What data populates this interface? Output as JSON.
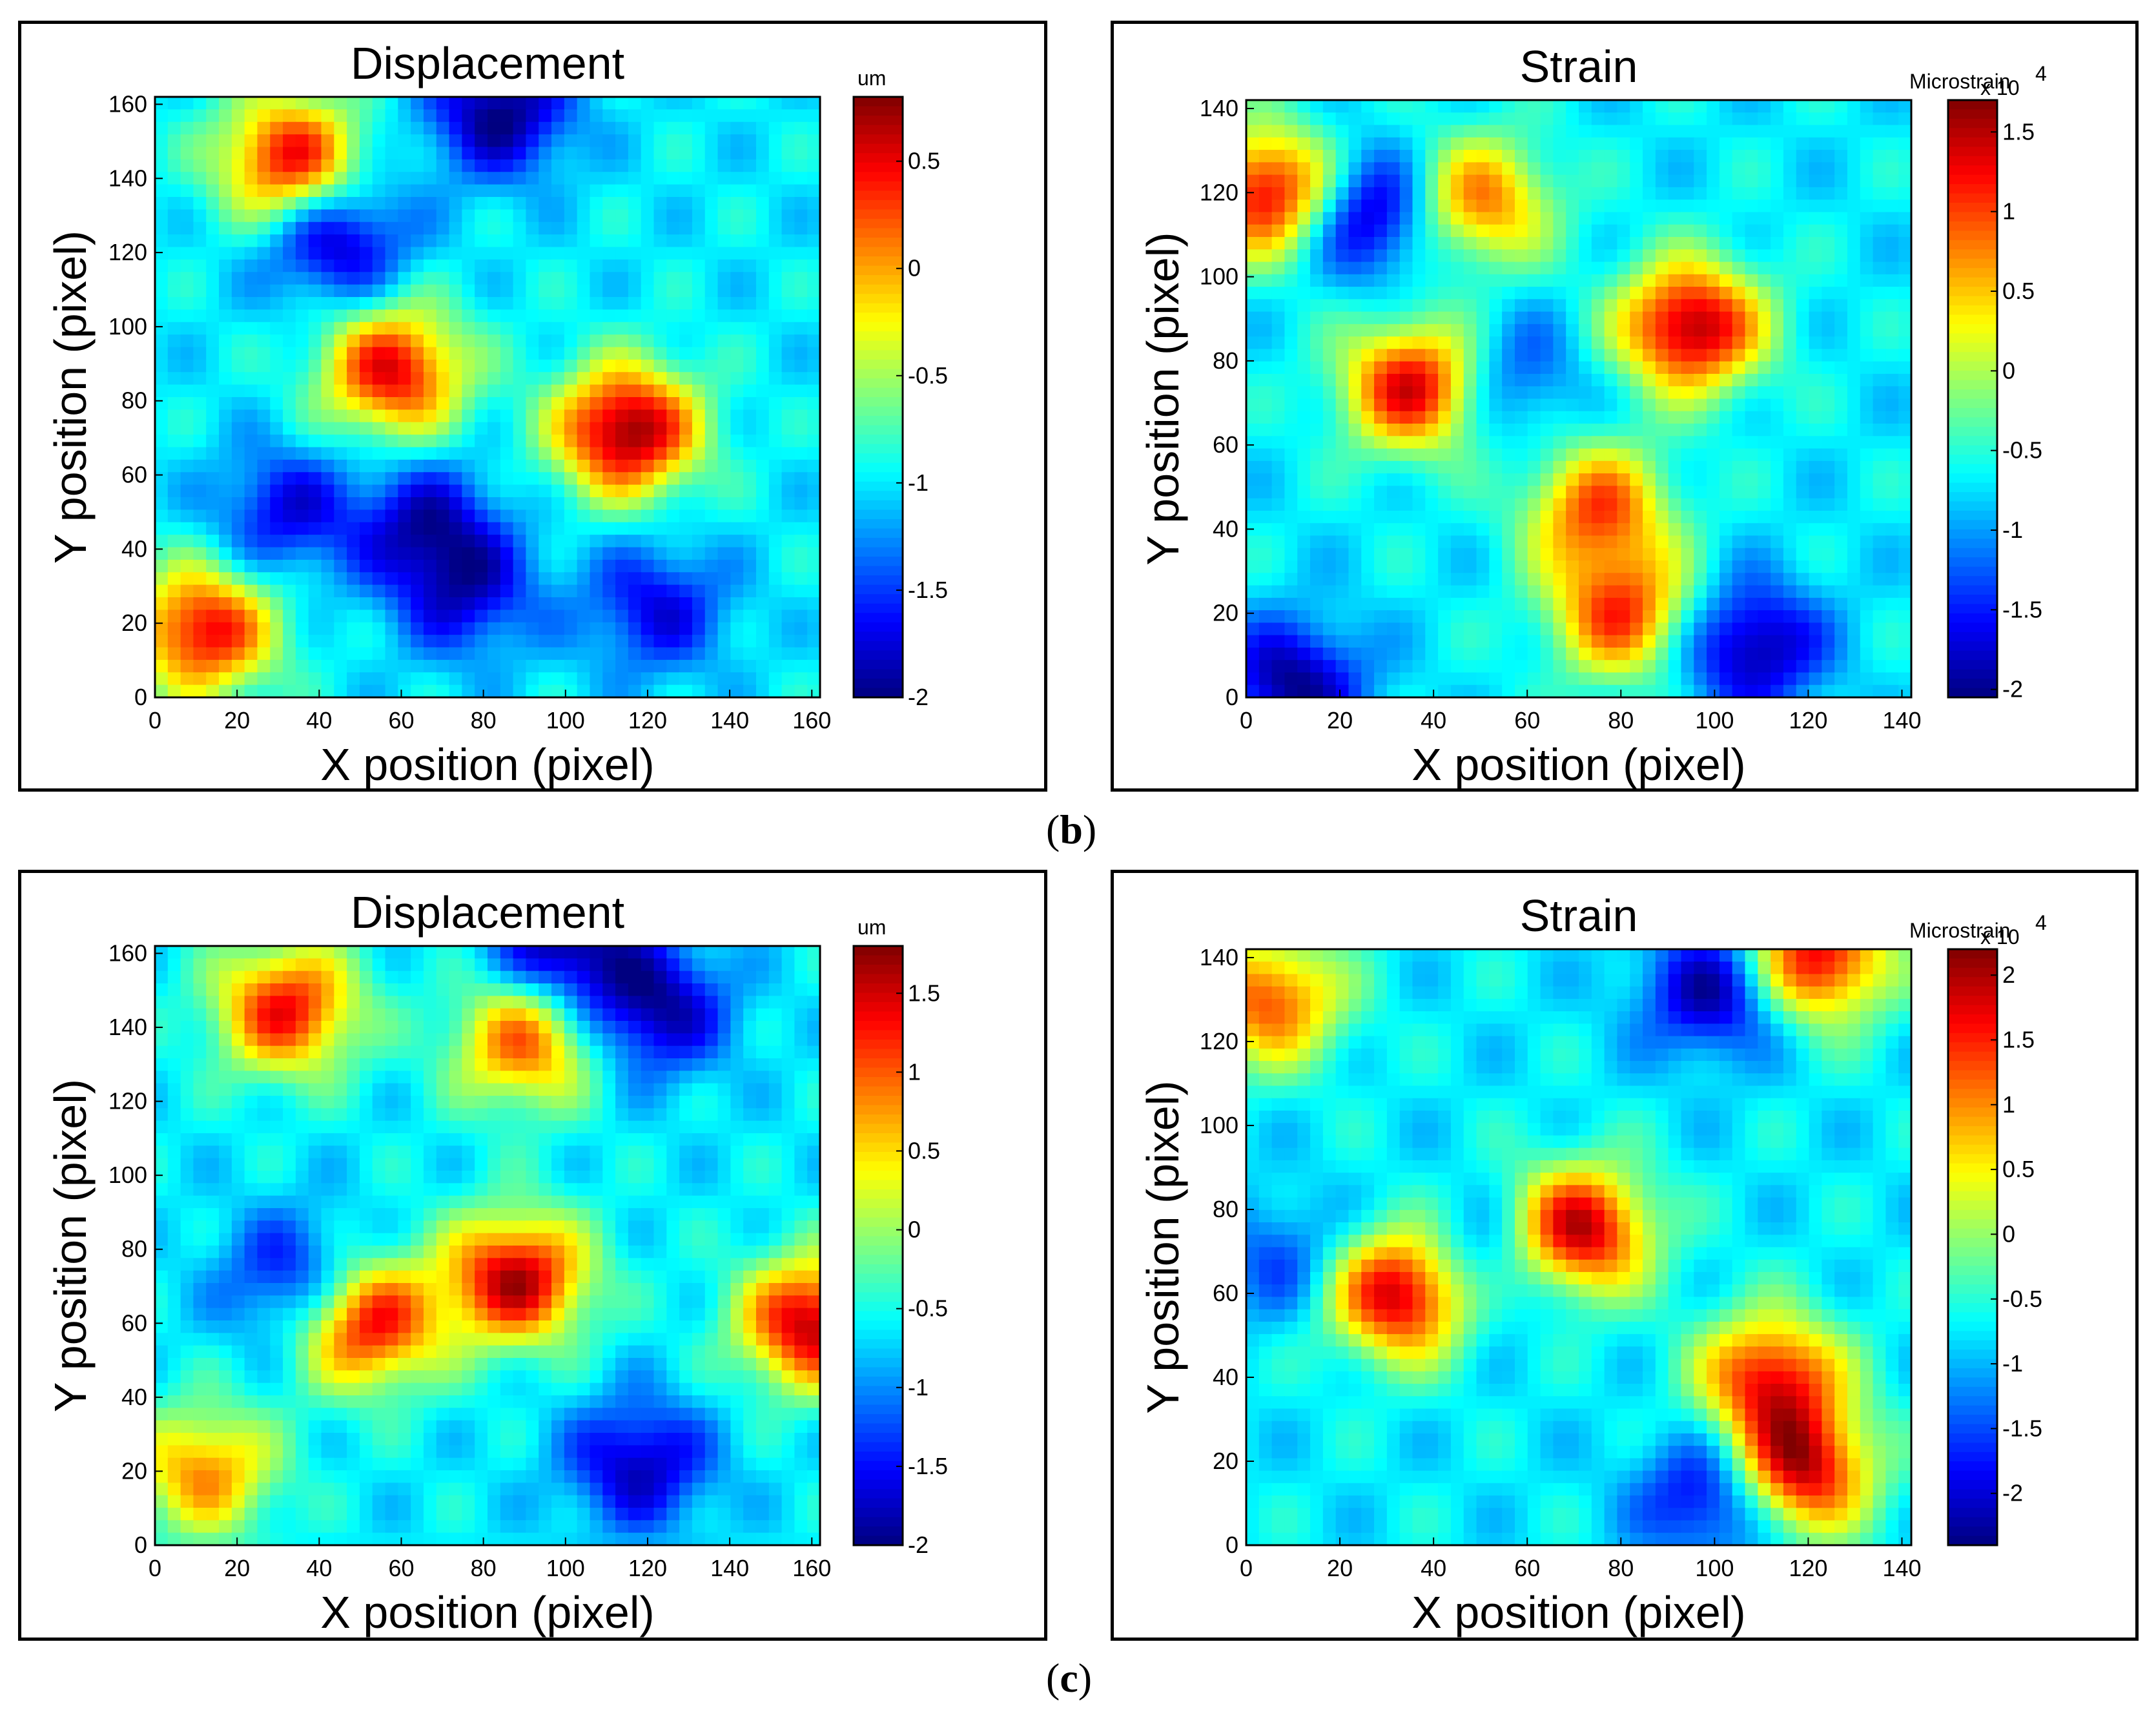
{
  "panels": [
    {
      "id": "b-displacement",
      "title": "Displacement",
      "xlabel": "X position (pixel)",
      "ylabel": "Y position (pixel)",
      "colorbar_unit": "um",
      "colorbar_exponent": "",
      "xticks": [
        "0",
        "20",
        "40",
        "60",
        "80",
        "100",
        "120",
        "140",
        "160"
      ],
      "yticks": [
        "0",
        "20",
        "40",
        "60",
        "80",
        "100",
        "120",
        "140",
        "160"
      ],
      "cticks": [
        "0.5",
        "0",
        "-0.5",
        "-1",
        "-1.5",
        "-2"
      ]
    },
    {
      "id": "b-strain",
      "title": "Strain",
      "xlabel": "X position (pixel)",
      "ylabel": "Y position (pixel)",
      "colorbar_unit": "Microstrain",
      "colorbar_exponent": "x 10",
      "colorbar_exponent_power": "4",
      "xticks": [
        "0",
        "20",
        "40",
        "60",
        "80",
        "100",
        "120",
        "140"
      ],
      "yticks": [
        "0",
        "20",
        "40",
        "60",
        "80",
        "100",
        "120",
        "140"
      ],
      "cticks": [
        "1.5",
        "1",
        "0.5",
        "0",
        "-0.5",
        "-1",
        "-1.5",
        "-2"
      ]
    },
    {
      "id": "c-displacement",
      "title": "Displacement",
      "xlabel": "X position (pixel)",
      "ylabel": "Y position (pixel)",
      "colorbar_unit": "um",
      "colorbar_exponent": "",
      "xticks": [
        "0",
        "20",
        "40",
        "60",
        "80",
        "100",
        "120",
        "140",
        "160"
      ],
      "yticks": [
        "0",
        "20",
        "40",
        "60",
        "80",
        "100",
        "120",
        "140",
        "160"
      ],
      "cticks": [
        "1.5",
        "1",
        "0.5",
        "0",
        "-0.5",
        "-1",
        "-1.5",
        "-2"
      ]
    },
    {
      "id": "c-strain",
      "title": "Strain",
      "xlabel": "X position (pixel)",
      "ylabel": "Y position (pixel)",
      "colorbar_unit": "Microstrain",
      "colorbar_exponent": "x 10",
      "colorbar_exponent_power": "4",
      "xticks": [
        "0",
        "20",
        "40",
        "60",
        "80",
        "100",
        "120",
        "140"
      ],
      "yticks": [
        "0",
        "20",
        "40",
        "60",
        "80",
        "100",
        "120",
        "140"
      ],
      "cticks": [
        "2",
        "1.5",
        "1",
        "0.5",
        "0",
        "-0.5",
        "-1",
        "-1.5",
        "-2"
      ]
    }
  ],
  "captions": {
    "b": "b",
    "c": "c"
  },
  "colormap": "jet",
  "chart_data": [
    {
      "type": "heatmap",
      "title": "Displacement",
      "xlabel": "X position (pixel)",
      "ylabel": "Y position (pixel)",
      "xlim": [
        0,
        162
      ],
      "ylim": [
        0,
        162
      ],
      "colorbar_label": "um",
      "clim": [
        -2,
        0.8
      ],
      "hotspots": [
        {
          "x": 115,
          "y": 72,
          "value": 0.8
        },
        {
          "x": 58,
          "y": 88,
          "value": 0.5
        },
        {
          "x": 33,
          "y": 145,
          "value": 0.5
        },
        {
          "x": 12,
          "y": 18,
          "value": 0.5
        },
        {
          "x": 44,
          "y": 124,
          "value": -1.9
        },
        {
          "x": 84,
          "y": 158,
          "value": -2
        },
        {
          "x": 66,
          "y": 46,
          "value": -1.8
        },
        {
          "x": 122,
          "y": 24,
          "value": -1.7
        },
        {
          "x": 32,
          "y": 50,
          "value": -1.7
        },
        {
          "x": 76,
          "y": 28,
          "value": -1.7
        }
      ]
    },
    {
      "type": "heatmap",
      "title": "Strain",
      "xlabel": "X position (pixel)",
      "ylabel": "Y position (pixel)",
      "xlim": [
        0,
        142
      ],
      "ylim": [
        0,
        142
      ],
      "colorbar_label": "Microstrain x 10^4",
      "clim": [
        -2.05,
        1.7
      ],
      "hotspots": [
        {
          "x": 95,
          "y": 88,
          "value": 1.6
        },
        {
          "x": 36,
          "y": 74,
          "value": 1.4
        },
        {
          "x": 5,
          "y": 120,
          "value": 1.4
        },
        {
          "x": 80,
          "y": 20,
          "value": 1.0
        },
        {
          "x": 75,
          "y": 45,
          "value": 0.9
        },
        {
          "x": 50,
          "y": 118,
          "value": 0.8
        },
        {
          "x": 26,
          "y": 115,
          "value": -2
        },
        {
          "x": 108,
          "y": 12,
          "value": -2
        },
        {
          "x": 56,
          "y": 76,
          "value": -1.4
        },
        {
          "x": 10,
          "y": 3,
          "value": -2
        }
      ]
    },
    {
      "type": "heatmap",
      "title": "Displacement",
      "xlabel": "X position (pixel)",
      "ylabel": "Y position (pixel)",
      "xlim": [
        0,
        162
      ],
      "ylim": [
        0,
        162
      ],
      "colorbar_label": "um",
      "clim": [
        -2,
        1.8
      ],
      "hotspots": [
        {
          "x": 88,
          "y": 72,
          "value": 1.6
        },
        {
          "x": 160,
          "y": 60,
          "value": 1.6
        },
        {
          "x": 52,
          "y": 60,
          "value": 1.4
        },
        {
          "x": 32,
          "y": 145,
          "value": 1.3
        },
        {
          "x": 90,
          "y": 136,
          "value": 1.0
        },
        {
          "x": 12,
          "y": 20,
          "value": 0.8
        },
        {
          "x": 122,
          "y": 145,
          "value": -1.9
        },
        {
          "x": 118,
          "y": 22,
          "value": -1.8
        },
        {
          "x": 34,
          "y": 72,
          "value": -1.6
        },
        {
          "x": 100,
          "y": 162,
          "value": -2
        }
      ]
    },
    {
      "type": "heatmap",
      "title": "Strain",
      "xlabel": "X position (pixel)",
      "ylabel": "Y position (pixel)",
      "xlim": [
        0,
        142
      ],
      "ylim": [
        0,
        142
      ],
      "colorbar_label": "Microstrain x 10^4",
      "clim": [
        -2.4,
        2.2
      ],
      "hotspots": [
        {
          "x": 33,
          "y": 60,
          "value": 2.0
        },
        {
          "x": 71,
          "y": 75,
          "value": 2.0
        },
        {
          "x": 118,
          "y": 18,
          "value": 2.0
        },
        {
          "x": 112,
          "y": 40,
          "value": 1.6
        },
        {
          "x": 122,
          "y": 140,
          "value": 1.8
        },
        {
          "x": 5,
          "y": 130,
          "value": 1.3
        },
        {
          "x": 100,
          "y": 132,
          "value": -2.3
        },
        {
          "x": 100,
          "y": 12,
          "value": -2.2
        },
        {
          "x": 52,
          "y": 68,
          "value": -1.6
        },
        {
          "x": 8,
          "y": 68,
          "value": -1.5
        }
      ]
    }
  ]
}
